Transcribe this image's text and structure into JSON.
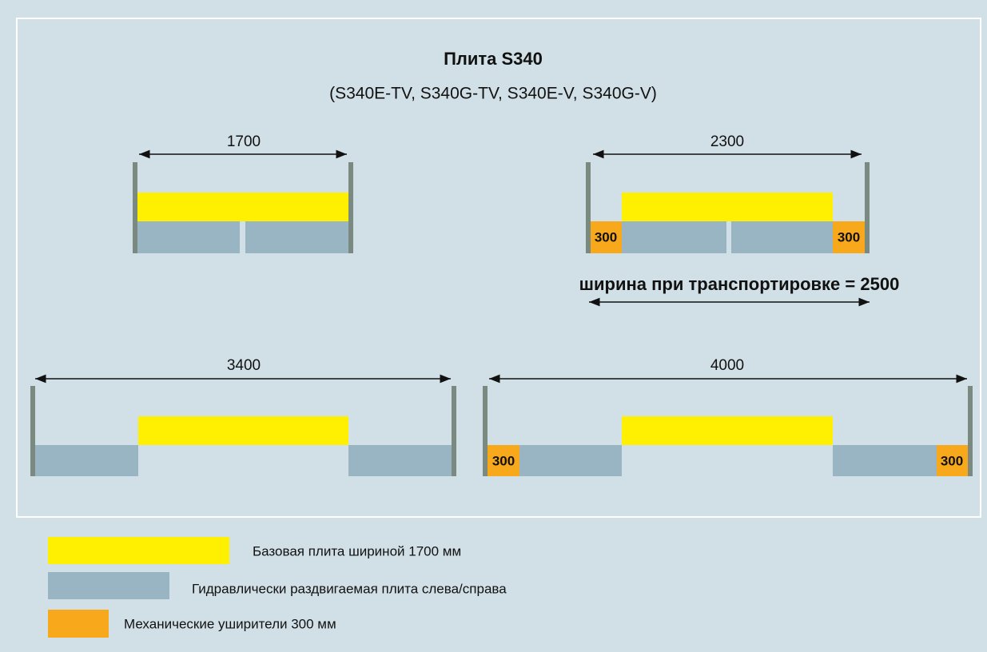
{
  "title": "Плита S340",
  "subtitle": "(S340E-TV, S340G-TV, S340E-V, S340G-V)",
  "diagrams": [
    {
      "width": "1700"
    },
    {
      "width": "2300",
      "extensions": [
        "300",
        "300"
      ]
    },
    {
      "width": "3400"
    },
    {
      "width": "4000",
      "extensions": [
        "300",
        "300"
      ]
    }
  ],
  "transport_label": "ширина при транспортировке = 2500",
  "legend": [
    {
      "label": "Базовая плита шириной 1700 мм"
    },
    {
      "label": "Гидравлически раздвигаемая плита слева/справа"
    },
    {
      "label": "Механические уширители 300 мм"
    }
  ]
}
